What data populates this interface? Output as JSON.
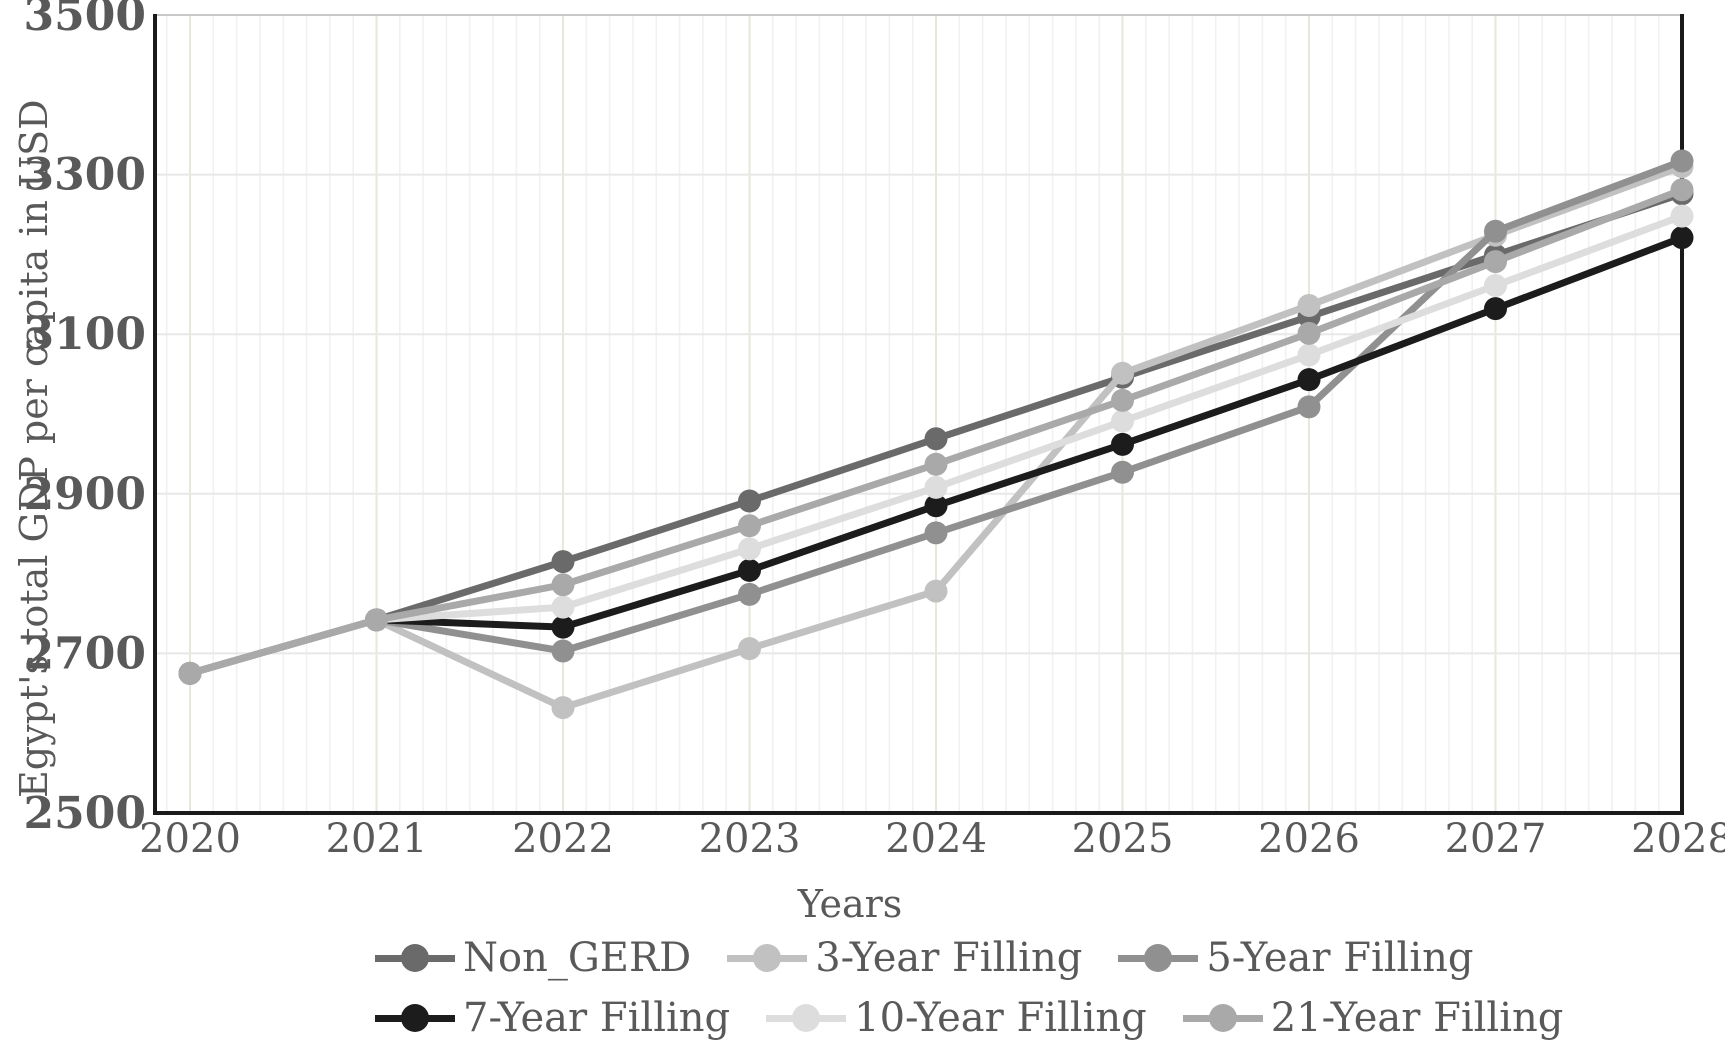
{
  "figure": {
    "background": "#ffffff",
    "text_color": "#595959",
    "axis_color": "#1a1a1a",
    "top_border_color": "#c8c8c8",
    "h_gridline_color": "#e8e8e8",
    "v_minor_gridline_color": "#f1f1ee",
    "v_major_gridline_color": "#e7e7db"
  },
  "chart_data": {
    "type": "line",
    "title": "",
    "xlabel": "Years",
    "ylabel": "Egypt's total GDP per capita in USD",
    "x": [
      2020,
      2021,
      2022,
      2023,
      2024,
      2025,
      2026,
      2027,
      2028
    ],
    "x_tick_labels": [
      "2020",
      "2021",
      "2022",
      "2023",
      "2024",
      "2025",
      "2026",
      "2027",
      "2028"
    ],
    "y_ticks": [
      2500,
      2700,
      2900,
      3100,
      3300,
      3500
    ],
    "y_tick_labels": [
      "2500",
      "2700",
      "2900",
      "3100",
      "3300",
      "3500"
    ],
    "ylim": [
      2500,
      3500
    ],
    "grid": "on",
    "legend_position": "bottom",
    "marker": "circle",
    "series": [
      {
        "name": "Non_GERD",
        "color": "#6a6a6a",
        "values": [
          2675,
          2742,
          2815,
          2891,
          2969,
          3046,
          3122,
          3199,
          3276
        ]
      },
      {
        "name": "3-Year Filling",
        "color": "#c1c1c1",
        "values": [
          2675,
          2742,
          2632,
          2706,
          2778,
          3051,
          3136,
          3224,
          3310
        ]
      },
      {
        "name": "5-Year Filling",
        "color": "#909090",
        "values": [
          2675,
          2742,
          2703,
          2774,
          2851,
          2927,
          3009,
          3229,
          3317
        ]
      },
      {
        "name": "7-Year Filling",
        "color": "#1c1c1c",
        "values": [
          2675,
          2742,
          2733,
          2804,
          2885,
          2962,
          3043,
          3132,
          3221
        ]
      },
      {
        "name": "10-Year Filling",
        "color": "#dddddd",
        "values": [
          2675,
          2742,
          2758,
          2831,
          2908,
          2991,
          3074,
          3161,
          3248
        ]
      },
      {
        "name": "21-Year Filling",
        "color": "#a9a9a9",
        "values": [
          2675,
          2742,
          2786,
          2860,
          2937,
          3017,
          3101,
          3191,
          3281
        ]
      }
    ]
  }
}
